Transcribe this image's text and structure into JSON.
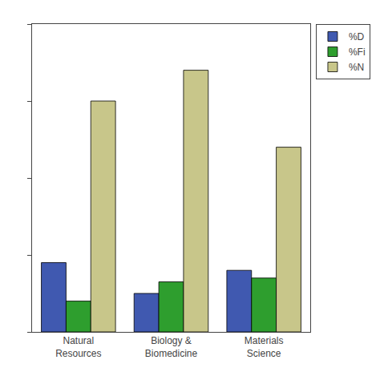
{
  "chart_data": {
    "type": "bar",
    "categories": [
      "Natural\nResources",
      "Biology &\nBiomedicine",
      "Materials\nScience"
    ],
    "series": [
      {
        "name": "%D",
        "color": "#4059b0",
        "values": [
          18,
          10,
          16
        ]
      },
      {
        "name": "%Fi",
        "color": "#2e9e2e",
        "values": [
          8,
          13,
          14
        ]
      },
      {
        "name": "%N",
        "color": "#c8c68a",
        "values": [
          60,
          68,
          48
        ]
      }
    ],
    "ylim": [
      0,
      80
    ],
    "yticks": [
      0,
      20,
      40,
      60,
      80
    ],
    "tick_labels": "x",
    "grid": false,
    "legend": "right"
  }
}
